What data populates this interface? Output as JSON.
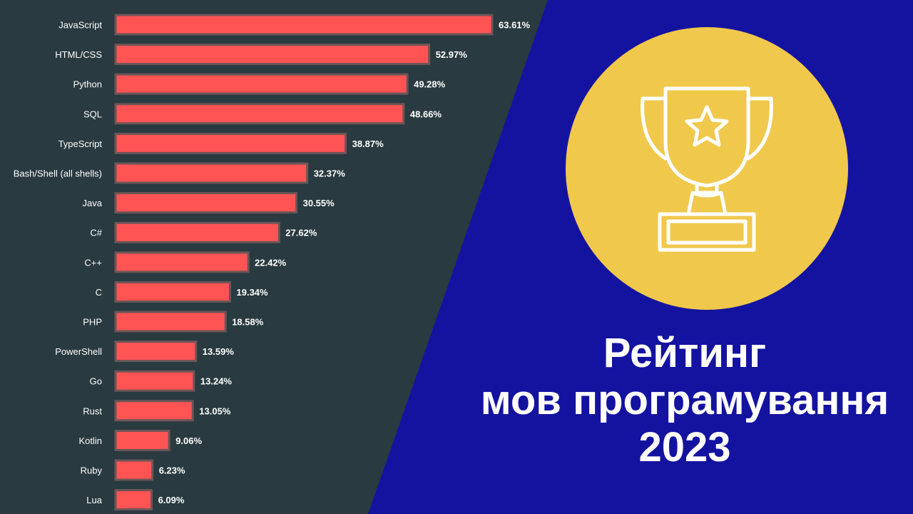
{
  "colors": {
    "panel_bg": "#293a40",
    "page_bg": "#1413a0",
    "bar": "#ff5354",
    "circle": "#f0c84c",
    "trophy_stroke": "#ffffff"
  },
  "icon": "trophy-star-icon",
  "headline": {
    "line1": "Рейтинг",
    "line2": "мов програмування",
    "line3": "2023"
  },
  "chart_data": {
    "type": "bar",
    "orientation": "horizontal",
    "title": "",
    "xlabel": "",
    "ylabel": "",
    "xlim": [
      0,
      63.61
    ],
    "grid": false,
    "categories": [
      "JavaScript",
      "HTML/CSS",
      "Python",
      "SQL",
      "TypeScript",
      "Bash/Shell (all shells)",
      "Java",
      "C#",
      "C++",
      "C",
      "PHP",
      "PowerShell",
      "Go",
      "Rust",
      "Kotlin",
      "Ruby",
      "Lua"
    ],
    "values": [
      63.61,
      52.97,
      49.28,
      48.66,
      38.87,
      32.37,
      30.55,
      27.62,
      22.42,
      19.34,
      18.58,
      13.59,
      13.24,
      13.05,
      9.06,
      6.23,
      6.09
    ],
    "value_labels": [
      "63.61%",
      "52.97%",
      "49.28%",
      "48.66%",
      "38.87%",
      "32.37%",
      "30.55%",
      "27.62%",
      "22.42%",
      "19.34%",
      "18.58%",
      "13.59%",
      "13.24%",
      "13.05%",
      "9.06%",
      "6.23%",
      "6.09%"
    ]
  }
}
